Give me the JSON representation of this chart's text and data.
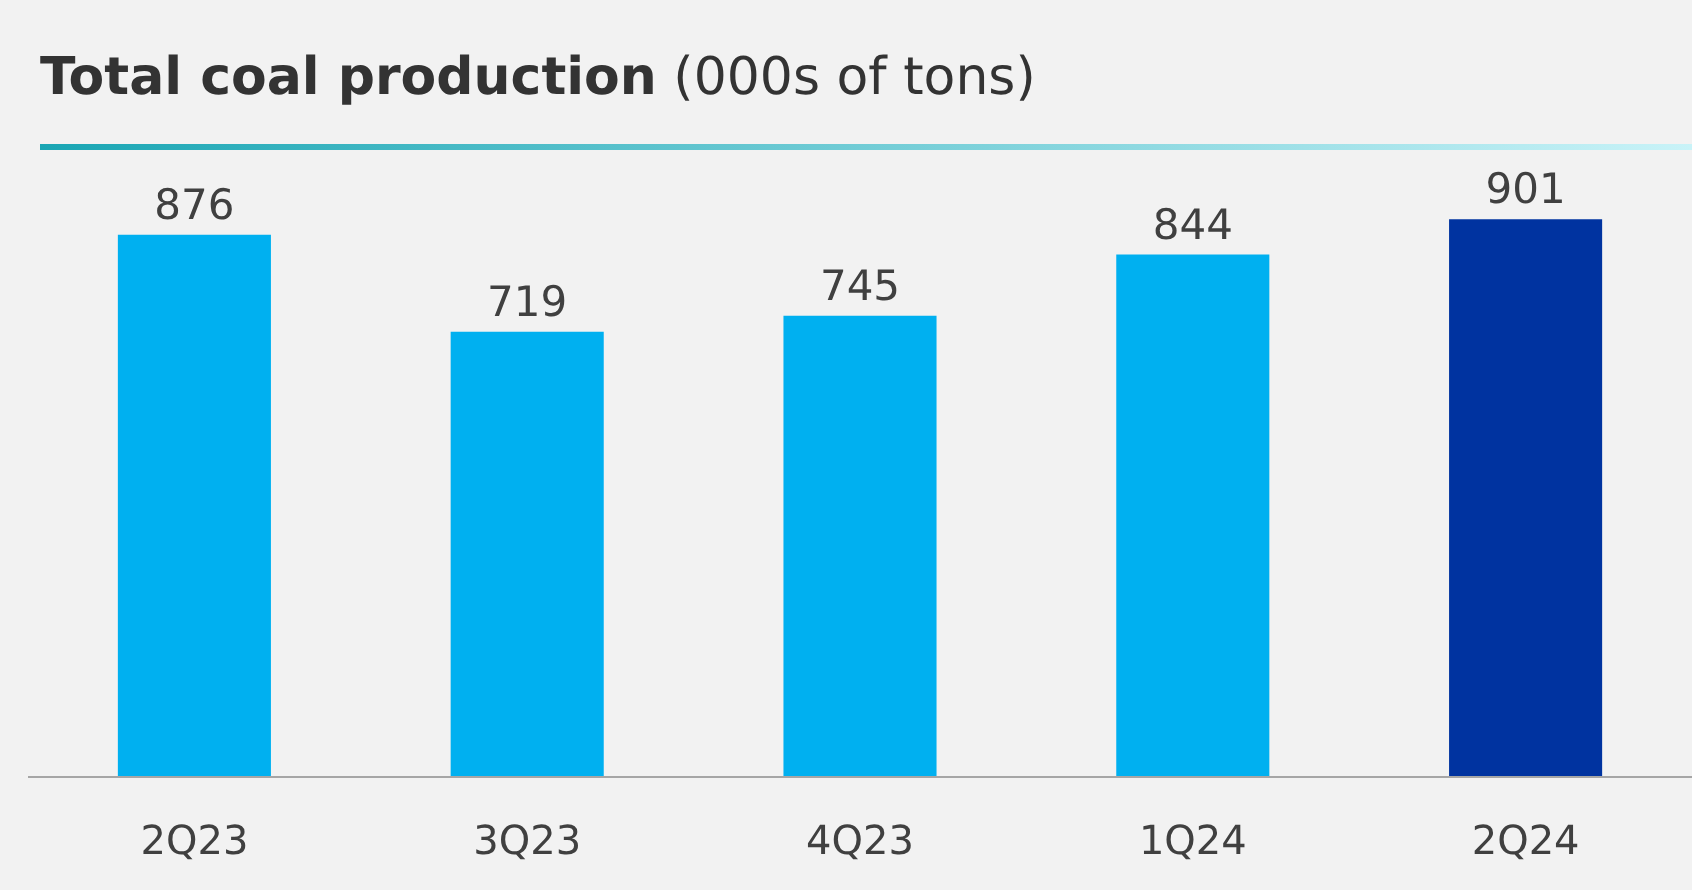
{
  "chart_data": {
    "type": "bar",
    "title": "Total coal production",
    "subtitle": "(000s of tons)",
    "categories": [
      "2Q23",
      "3Q23",
      "4Q23",
      "1Q24",
      "2Q24"
    ],
    "values": [
      876,
      719,
      745,
      844,
      901
    ],
    "colors": [
      "#00b0f0",
      "#00b0f0",
      "#00b0f0",
      "#00b0f0",
      "#0033a0"
    ],
    "data_labels": true
  }
}
